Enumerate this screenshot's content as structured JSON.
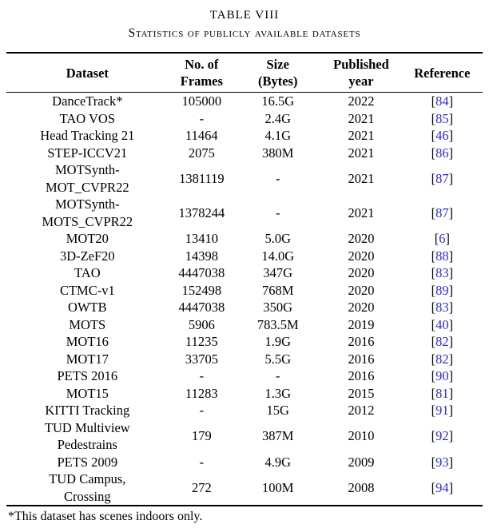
{
  "caption": {
    "title": "TABLE VIII",
    "subtitle": "Statistics of publicly available datasets"
  },
  "table": {
    "columns": [
      "Dataset",
      "No. of\nFrames",
      "Size\n(Bytes)",
      "Published\nyear",
      "Reference"
    ],
    "rows": [
      {
        "dataset": "DanceTrack*",
        "frames": "105000",
        "size": "16.5G",
        "year": "2022",
        "ref": "84"
      },
      {
        "dataset": "TAO VOS",
        "frames": "-",
        "size": "2.4G",
        "year": "2021",
        "ref": "85"
      },
      {
        "dataset": "Head Tracking 21",
        "frames": "11464",
        "size": "4.1G",
        "year": "2021",
        "ref": "46"
      },
      {
        "dataset": "STEP-ICCV21",
        "frames": "2075",
        "size": "380M",
        "year": "2021",
        "ref": "86"
      },
      {
        "dataset": "MOTSynth-\nMOT_CVPR22",
        "frames": "1381119",
        "size": "-",
        "year": "2021",
        "ref": "87"
      },
      {
        "dataset": "MOTSynth-\nMOTS_CVPR22",
        "frames": "1378244",
        "size": "-",
        "year": "2021",
        "ref": "87"
      },
      {
        "dataset": "MOT20",
        "frames": "13410",
        "size": "5.0G",
        "year": "2020",
        "ref": "6"
      },
      {
        "dataset": "3D-ZeF20",
        "frames": "14398",
        "size": "14.0G",
        "year": "2020",
        "ref": "88"
      },
      {
        "dataset": "TAO",
        "frames": "4447038",
        "size": "347G",
        "year": "2020",
        "ref": "83"
      },
      {
        "dataset": "CTMC-v1",
        "frames": "152498",
        "size": "768M",
        "year": "2020",
        "ref": "89"
      },
      {
        "dataset": "OWTB",
        "frames": "4447038",
        "size": "350G",
        "year": "2020",
        "ref": "83"
      },
      {
        "dataset": "MOTS",
        "frames": "5906",
        "size": "783.5M",
        "year": "2019",
        "ref": "40"
      },
      {
        "dataset": "MOT16",
        "frames": "11235",
        "size": "1.9G",
        "year": "2016",
        "ref": "82"
      },
      {
        "dataset": "MOT17",
        "frames": "33705",
        "size": "5.5G",
        "year": "2016",
        "ref": "82"
      },
      {
        "dataset": "PETS 2016",
        "frames": "-",
        "size": "-",
        "year": "2016",
        "ref": "90"
      },
      {
        "dataset": "MOT15",
        "frames": "11283",
        "size": "1.3G",
        "year": "2015",
        "ref": "81"
      },
      {
        "dataset": "KITTI Tracking",
        "frames": "-",
        "size": "15G",
        "year": "2012",
        "ref": "91"
      },
      {
        "dataset": "TUD Multiview\nPedestrains",
        "frames": "179",
        "size": "387M",
        "year": "2010",
        "ref": "92"
      },
      {
        "dataset": "PETS 2009",
        "frames": "-",
        "size": "4.9G",
        "year": "2009",
        "ref": "93"
      },
      {
        "dataset": "TUD Campus,\nCrossing",
        "frames": "272",
        "size": "100M",
        "year": "2008",
        "ref": "94"
      }
    ],
    "reference_bracket_open": "[",
    "reference_bracket_close": "]"
  },
  "footnote": "*This dataset has scenes indoors only.",
  "colors": {
    "text": "#000000",
    "reference_link": "#2b2bd7",
    "rule": "#000000"
  }
}
